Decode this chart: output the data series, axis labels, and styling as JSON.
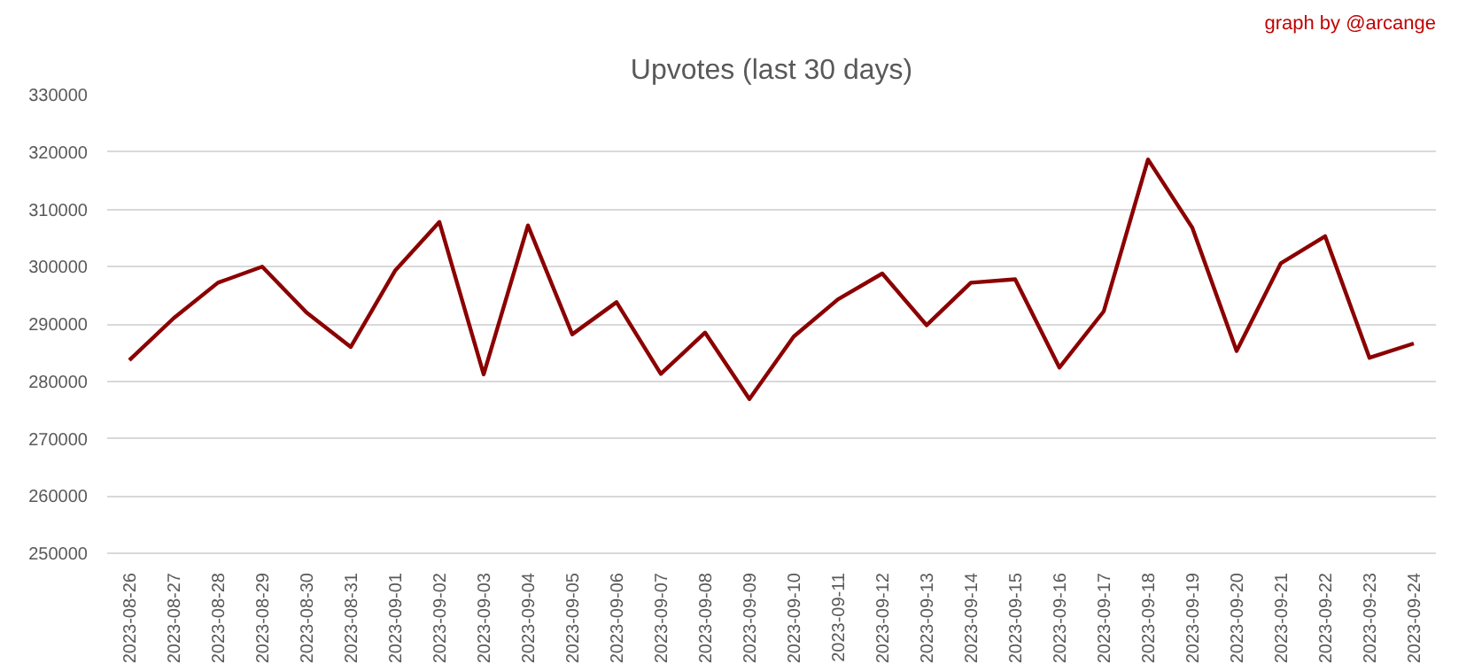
{
  "chart_data": {
    "type": "line",
    "title": "Upvotes (last 30 days)",
    "annotations": [
      "graph by @arcange"
    ],
    "categories": [
      "2023-08-26",
      "2023-08-27",
      "2023-08-28",
      "2023-08-29",
      "2023-08-30",
      "2023-08-31",
      "2023-09-01",
      "2023-09-02",
      "2023-09-03",
      "2023-09-04",
      "2023-09-05",
      "2023-09-06",
      "2023-09-07",
      "2023-09-08",
      "2023-09-09",
      "2023-09-10",
      "2023-09-11",
      "2023-09-12",
      "2023-09-13",
      "2023-09-14",
      "2023-09-15",
      "2023-09-16",
      "2023-09-17",
      "2023-09-18",
      "2023-09-19",
      "2023-09-20",
      "2023-09-21",
      "2023-09-22",
      "2023-09-23",
      "2023-09-24"
    ],
    "series": [
      {
        "color": "#8b0000",
        "values": [
          283700,
          291000,
          297200,
          300000,
          292000,
          286000,
          299300,
          307800,
          281200,
          307200,
          288200,
          293800,
          281300,
          288500,
          276900,
          287800,
          294300,
          298800,
          289800,
          297200,
          297800,
          282400,
          292200,
          318700,
          306800,
          285300,
          300600,
          305300,
          284100,
          286600
        ]
      }
    ],
    "ylim": [
      250000,
      330000
    ],
    "yticks": [
      250000,
      260000,
      270000,
      280000,
      290000,
      300000,
      310000,
      320000,
      330000
    ],
    "grid": "y",
    "marker": "none",
    "line_style": "solid"
  }
}
